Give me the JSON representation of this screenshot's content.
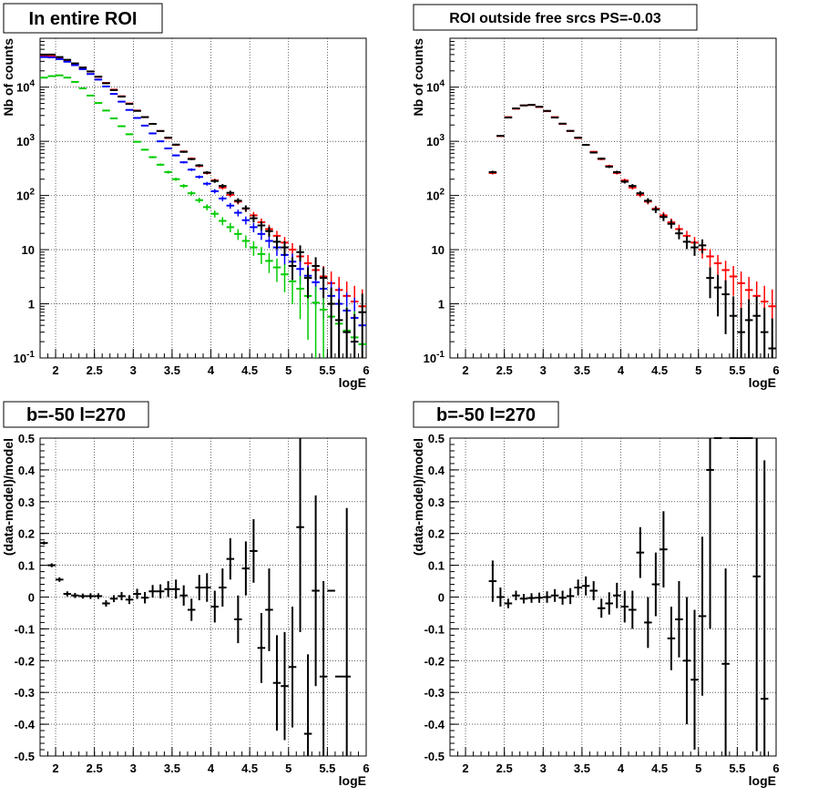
{
  "colors": {
    "data": "#000000",
    "model_red": "#ff0000",
    "model_blue": "#0000ff",
    "model_green": "#00cc00",
    "frame": "#000000",
    "grid": "#000000"
  },
  "chart_data": [
    {
      "type": "scatter",
      "title": "In entire ROI",
      "xlabel": "logE",
      "ylabel": "Nb of counts",
      "yscale": "log",
      "xlim": [
        1.8,
        6
      ],
      "ylim": [
        0.1,
        80000
      ],
      "x_ticks": [
        "2",
        "2.5",
        "3",
        "3.5",
        "4",
        "4.5",
        "5",
        "5.5",
        "6"
      ],
      "y_ticks": [
        "10^{-1}",
        "1",
        "10",
        "10^{2}",
        "10^{3}",
        "10^{4}"
      ],
      "grid": true,
      "legend": "none",
      "series": [
        {
          "color": "#ff0000",
          "style": "step",
          "x": [
            1.85,
            1.95,
            2.05,
            2.15,
            2.25,
            2.35,
            2.45,
            2.55,
            2.65,
            2.75,
            2.85,
            2.95,
            3.05,
            3.15,
            3.25,
            3.35,
            3.45,
            3.55,
            3.65,
            3.75,
            3.85,
            3.95,
            4.05,
            4.15,
            4.25,
            4.35,
            4.45,
            4.55,
            4.65,
            4.75,
            4.85,
            4.95,
            5.05,
            5.15,
            5.25,
            5.35,
            5.45,
            5.55,
            5.65,
            5.75,
            5.85,
            5.95
          ],
          "y": [
            38000,
            37000,
            34000,
            31000,
            27000,
            23000,
            19500,
            15500,
            12000,
            9000,
            6800,
            5000,
            3700,
            2800,
            2100,
            1550,
            1150,
            860,
            650,
            480,
            350,
            260,
            190,
            140,
            103,
            77,
            57,
            43,
            32,
            24,
            18,
            13.5,
            10,
            7.5,
            5.6,
            4.2,
            3.2,
            2.4,
            1.8,
            1.4,
            1.1,
            0.9
          ]
        },
        {
          "color": "#0000ff",
          "style": "step",
          "x": [
            1.85,
            1.95,
            2.05,
            2.15,
            2.25,
            2.35,
            2.45,
            2.55,
            2.65,
            2.75,
            2.85,
            2.95,
            3.05,
            3.15,
            3.25,
            3.35,
            3.45,
            3.55,
            3.65,
            3.75,
            3.85,
            3.95,
            4.05,
            4.15,
            4.25,
            4.35,
            4.45,
            4.55,
            4.65,
            4.75,
            4.85,
            4.95,
            5.05,
            5.15,
            5.25,
            5.35,
            5.45,
            5.55,
            5.65,
            5.75,
            5.85,
            5.95
          ],
          "y": [
            36000,
            35500,
            33000,
            29500,
            25500,
            21500,
            17500,
            13800,
            10300,
            7500,
            5400,
            3800,
            2700,
            1950,
            1400,
            1000,
            740,
            550,
            410,
            300,
            220,
            165,
            120,
            88,
            65,
            48,
            35,
            26,
            19.5,
            14.5,
            11,
            8,
            6,
            4.4,
            3.3,
            2.5,
            1.9,
            1.4,
            1,
            0.75,
            0.55,
            0.4
          ]
        },
        {
          "color": "#00cc00",
          "style": "step",
          "x": [
            1.85,
            1.95,
            2.05,
            2.15,
            2.25,
            2.35,
            2.45,
            2.55,
            2.65,
            2.75,
            2.85,
            2.95,
            3.05,
            3.15,
            3.25,
            3.35,
            3.45,
            3.55,
            3.65,
            3.75,
            3.85,
            3.95,
            4.05,
            4.15,
            4.25,
            4.35,
            4.45,
            4.55,
            4.65,
            4.75,
            4.85,
            4.95,
            5.05,
            5.15,
            5.25,
            5.35,
            5.45,
            5.55,
            5.65,
            5.75,
            5.85,
            5.95
          ],
          "y": [
            15000,
            16000,
            16500,
            15000,
            12500,
            9500,
            7000,
            5100,
            3700,
            2650,
            1900,
            1350,
            980,
            700,
            510,
            370,
            270,
            200,
            150,
            110,
            82,
            61,
            46,
            34,
            26,
            19.5,
            14.5,
            11,
            8.3,
            6.2,
            4.7,
            3.5,
            2.6,
            1.9,
            1.4,
            1.05,
            0.78,
            0.58,
            0.43,
            0.32,
            0.24,
            0.18
          ]
        },
        {
          "color": "#000000",
          "style": "errorbar",
          "x": [
            1.85,
            1.95,
            2.05,
            2.15,
            2.25,
            2.35,
            2.45,
            2.55,
            2.65,
            2.75,
            2.85,
            2.95,
            3.05,
            3.15,
            3.25,
            3.35,
            3.45,
            3.55,
            3.65,
            3.75,
            3.85,
            3.95,
            4.05,
            4.15,
            4.25,
            4.35,
            4.45,
            4.55,
            4.65,
            4.75,
            4.85,
            4.95,
            5.05,
            5.15,
            5.25,
            5.35,
            5.45,
            5.55,
            5.65,
            5.75,
            5.85,
            5.95
          ],
          "y": [
            40000,
            40000,
            36000,
            32000,
            27500,
            23000,
            19500,
            15600,
            11800,
            8800,
            6700,
            4900,
            3650,
            2800,
            2100,
            1550,
            1170,
            870,
            640,
            470,
            360,
            265,
            185,
            150,
            112,
            80,
            58,
            38,
            28,
            22,
            14,
            11,
            5,
            9,
            3,
            5,
            3,
            1,
            0.5,
            0.3,
            0.2,
            0.7
          ]
        }
      ]
    },
    {
      "type": "scatter",
      "title": "ROI outside free srcs PS=-0.03",
      "xlabel": "logE",
      "ylabel": "Nb of counts",
      "yscale": "log",
      "xlim": [
        1.8,
        6
      ],
      "ylim": [
        0.1,
        80000
      ],
      "x_ticks": [
        "2",
        "2.5",
        "3",
        "3.5",
        "4",
        "4.5",
        "5",
        "5.5",
        "6"
      ],
      "y_ticks": [
        "10^{-1}",
        "1",
        "10",
        "10^{2}",
        "10^{3}",
        "10^{4}"
      ],
      "grid": true,
      "legend": "none",
      "series": [
        {
          "color": "#ff0000",
          "style": "step",
          "x": [
            2.35,
            2.45,
            2.55,
            2.65,
            2.75,
            2.85,
            2.95,
            3.05,
            3.15,
            3.25,
            3.35,
            3.45,
            3.55,
            3.65,
            3.75,
            3.85,
            3.95,
            4.05,
            4.15,
            4.25,
            4.35,
            4.45,
            4.55,
            4.65,
            4.75,
            4.85,
            4.95,
            5.05,
            5.15,
            5.25,
            5.35,
            5.45,
            5.55,
            5.65,
            5.75,
            5.85,
            5.95
          ],
          "y": [
            260,
            1250,
            2800,
            4000,
            4600,
            4700,
            4300,
            3600,
            2800,
            2100,
            1550,
            1150,
            860,
            640,
            470,
            350,
            260,
            190,
            140,
            103,
            77,
            57,
            43,
            32,
            24,
            18,
            13.5,
            10,
            7.5,
            5.6,
            4.2,
            3.2,
            2.4,
            1.8,
            1.4,
            1.1,
            0.9
          ]
        },
        {
          "color": "#000000",
          "style": "errorbar",
          "x": [
            2.35,
            2.45,
            2.55,
            2.65,
            2.75,
            2.85,
            2.95,
            3.05,
            3.15,
            3.25,
            3.35,
            3.45,
            3.55,
            3.65,
            3.75,
            3.85,
            3.95,
            4.05,
            4.15,
            4.25,
            4.35,
            4.45,
            4.55,
            4.65,
            4.75,
            4.85,
            4.95,
            5.05,
            5.15,
            5.25,
            5.35,
            5.45,
            5.55,
            5.65,
            5.75,
            5.85,
            5.95
          ],
          "y": [
            270,
            1260,
            2750,
            4050,
            4600,
            4700,
            4350,
            3650,
            2750,
            2120,
            1560,
            1170,
            860,
            620,
            480,
            340,
            270,
            180,
            150,
            110,
            80,
            55,
            40,
            30,
            20,
            14,
            11,
            12,
            3,
            2,
            1.5,
            0.6,
            0.3,
            0.5,
            0.6,
            0.3,
            0.15
          ]
        }
      ]
    },
    {
      "type": "scatter",
      "title": "b=-50 l=270",
      "xlabel": "logE",
      "ylabel": "(data-model)/model",
      "xlim": [
        1.8,
        6
      ],
      "ylim": [
        -0.5,
        0.5
      ],
      "x_ticks": [
        "2",
        "2.5",
        "3",
        "3.5",
        "4",
        "4.5",
        "5",
        "5.5",
        "6"
      ],
      "y_ticks": [
        "-0.5",
        "-0.4",
        "-0.3",
        "-0.2",
        "-0.1",
        "0",
        "0.1",
        "0.2",
        "0.3",
        "0.4",
        "0.5"
      ],
      "grid": true,
      "legend": "none",
      "series": [
        {
          "color": "#000000",
          "style": "errorbar",
          "x": [
            1.85,
            1.95,
            2.05,
            2.15,
            2.25,
            2.35,
            2.45,
            2.55,
            2.65,
            2.75,
            2.85,
            2.95,
            3.05,
            3.15,
            3.25,
            3.35,
            3.45,
            3.55,
            3.65,
            3.75,
            3.85,
            3.95,
            4.05,
            4.15,
            4.25,
            4.35,
            4.45,
            4.55,
            4.65,
            4.75,
            4.85,
            4.95,
            5.05,
            5.15,
            5.25,
            5.35,
            5.45,
            5.55,
            5.65,
            5.75
          ],
          "y": [
            0.17,
            0.1,
            0.055,
            0.01,
            0.005,
            0.003,
            0.003,
            0.003,
            -0.02,
            -0.005,
            0.003,
            -0.008,
            0.01,
            -0.002,
            0.018,
            0.018,
            0.025,
            0.025,
            0.005,
            -0.04,
            0.03,
            0.03,
            -0.03,
            0.03,
            0.12,
            -0.07,
            0.09,
            0.145,
            -0.16,
            -0.04,
            -0.27,
            -0.28,
            -0.22,
            0.22,
            -0.43,
            0.02,
            -0.25,
            0.02,
            -0.25,
            -0.25
          ],
          "err": [
            0.005,
            0.006,
            0.007,
            0.008,
            0.008,
            0.008,
            0.009,
            0.009,
            0.01,
            0.011,
            0.013,
            0.014,
            0.016,
            0.018,
            0.02,
            0.022,
            0.025,
            0.03,
            0.032,
            0.035,
            0.04,
            0.045,
            0.05,
            0.06,
            0.065,
            0.075,
            0.085,
            0.1,
            0.11,
            0.13,
            0.15,
            0.17,
            0.19,
            0.33,
            0.25,
            0.3,
            0.3,
            0,
            0,
            0.53
          ]
        }
      ]
    },
    {
      "type": "scatter",
      "title": "b=-50 l=270",
      "xlabel": "logE",
      "ylabel": "(data-model)/model",
      "xlim": [
        1.8,
        6
      ],
      "ylim": [
        -0.5,
        0.5
      ],
      "x_ticks": [
        "2",
        "2.5",
        "3",
        "3.5",
        "4",
        "4.5",
        "5",
        "5.5",
        "6"
      ],
      "y_ticks": [
        "-0.5",
        "-0.4",
        "-0.3",
        "-0.2",
        "-0.1",
        "0",
        "0.1",
        "0.2",
        "0.3",
        "0.4",
        "0.5"
      ],
      "grid": true,
      "legend": "none",
      "series": [
        {
          "color": "#000000",
          "style": "errorbar",
          "x": [
            2.35,
            2.45,
            2.55,
            2.65,
            2.75,
            2.85,
            2.95,
            3.05,
            3.15,
            3.25,
            3.35,
            3.45,
            3.55,
            3.65,
            3.75,
            3.85,
            3.95,
            4.05,
            4.15,
            4.25,
            4.35,
            4.45,
            4.55,
            4.65,
            4.75,
            4.85,
            4.95,
            5.05,
            5.15,
            5.25,
            5.35,
            5.45,
            5.55,
            5.65,
            5.75,
            5.85
          ],
          "y": [
            0.05,
            0.0,
            -0.02,
            0.005,
            -0.005,
            -0.003,
            -0.002,
            0.0,
            0.005,
            -0.002,
            0.003,
            0.03,
            0.035,
            0.02,
            -0.035,
            -0.02,
            0.005,
            -0.03,
            -0.04,
            0.14,
            -0.08,
            0.04,
            0.15,
            -0.13,
            -0.07,
            -0.2,
            -0.26,
            -0.06,
            0.4,
            0.5,
            -0.21,
            0.5,
            0.5,
            0.5,
            0.065,
            -0.32
          ],
          "err": [
            0.065,
            0.03,
            0.015,
            0.015,
            0.015,
            0.015,
            0.016,
            0.018,
            0.02,
            0.022,
            0.025,
            0.025,
            0.03,
            0.03,
            0.03,
            0.035,
            0.04,
            0.05,
            0.06,
            0.08,
            0.08,
            0.1,
            0.12,
            0.1,
            0.12,
            0.2,
            0.22,
            0.25,
            0.5,
            0,
            0.3,
            0,
            0,
            0,
            0.55,
            0.75
          ]
        }
      ]
    }
  ]
}
